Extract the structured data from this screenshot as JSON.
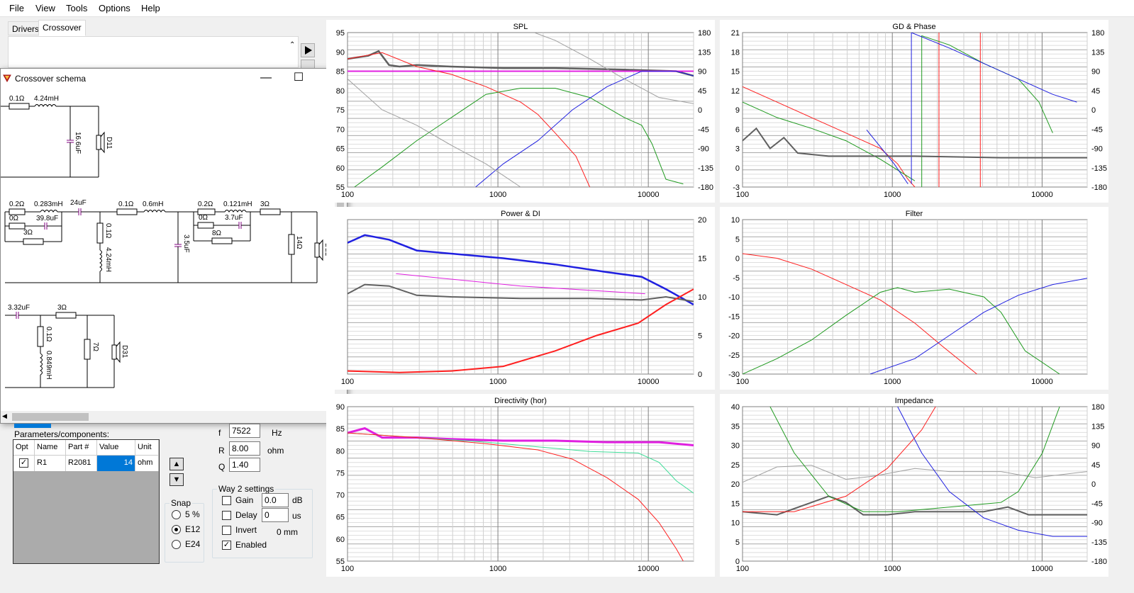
{
  "menu": [
    "File",
    "View",
    "Tools",
    "Options",
    "Help"
  ],
  "tabs": [
    "Drivers",
    "Crossover"
  ],
  "schema": {
    "title": "Crossover schema",
    "labels": {
      "r1": "0.1Ω",
      "l1": "4.24mH",
      "c1": "16.6uF",
      "d1": "D11",
      "r2": "0.2Ω",
      "l2": "0.283mH",
      "r3": "0Ω",
      "c2": "39.8uF",
      "r4": "3Ω",
      "c3": "24uF",
      "r5": "0.1Ω",
      "l3": "0.6mH",
      "r6": "0.1Ω",
      "l4": "4.24mH",
      "c4": "3.5uF",
      "r7": "0.2Ω",
      "l5": "0.121mH",
      "r8": "3Ω",
      "r9": "0Ω",
      "c5": "3.7uF",
      "r10": "8Ω",
      "r11": "14Ω",
      "d2": "D21",
      "c6": "3.32uF",
      "r12": "3Ω",
      "r13": "0.1Ω",
      "l6": "0.849mH",
      "r14": "7Ω",
      "d3": "D31"
    }
  },
  "filter_params": {
    "f_label": "f",
    "f_value": "7522",
    "f_unit": "Hz",
    "r_label": "R",
    "r_value": "8.00",
    "r_unit": "ohm",
    "q_label": "Q",
    "q_value": "1.40"
  },
  "components": {
    "title": "Parameters/components:",
    "columns": [
      "Opt",
      "Name",
      "Part #",
      "Value",
      "Unit"
    ],
    "rows": [
      {
        "opt": "✓",
        "name": "R1",
        "part": "R2081",
        "value": "14",
        "unit": "ohm"
      }
    ]
  },
  "snap": {
    "title": "Snap",
    "options": [
      "5 %",
      "E12",
      "E24"
    ],
    "selected": "E12"
  },
  "way2": {
    "title": "Way 2 settings",
    "gain_label": "Gain",
    "gain_value": "0.0",
    "gain_unit": "dB",
    "delay_label": "Delay",
    "delay_value": "0",
    "delay_unit": "us",
    "invert_label": "Invert",
    "invert_extra": "0 mm",
    "enabled_label": "Enabled",
    "enabled": true
  },
  "charts": [
    {
      "title": "SPL",
      "left_ticks": [
        "95",
        "90",
        "85",
        "80",
        "75",
        "70",
        "65",
        "60",
        "55"
      ],
      "right_ticks": [
        "180",
        "135",
        "90",
        "45",
        "0",
        "-45",
        "-90",
        "-135",
        "-180"
      ],
      "x_ticks": [
        "100",
        "1000",
        "10000"
      ]
    },
    {
      "title": "GD & Phase",
      "left_ticks": [
        "21",
        "18",
        "15",
        "12",
        "9",
        "6",
        "3",
        "0",
        "-3"
      ],
      "right_ticks": [
        "180",
        "135",
        "90",
        "45",
        "0",
        "-45",
        "-90",
        "-135",
        "-180"
      ],
      "x_ticks": [
        "100",
        "1000",
        "10000"
      ]
    },
    {
      "title": "Power & DI",
      "left_ticks": [],
      "right_ticks": [
        "20",
        "15",
        "10",
        "5",
        "0"
      ],
      "x_ticks": [
        "100",
        "1000",
        "10000"
      ]
    },
    {
      "title": "Filter",
      "left_ticks": [
        "10",
        "5",
        "0",
        "-5",
        "-10",
        "-15",
        "-20",
        "-25",
        "-30"
      ],
      "right_ticks": [],
      "x_ticks": [
        "100",
        "1000",
        "10000"
      ]
    },
    {
      "title": "Directivity (hor)",
      "left_ticks": [
        "90",
        "85",
        "80",
        "75",
        "70",
        "65",
        "60",
        "55"
      ],
      "right_ticks": [],
      "x_ticks": [
        "100",
        "1000",
        "10000"
      ]
    },
    {
      "title": "Impedance",
      "left_ticks": [
        "40",
        "35",
        "30",
        "25",
        "20",
        "15",
        "10",
        "5",
        "0"
      ],
      "right_ticks": [
        "180",
        "135",
        "90",
        "45",
        "0",
        "-45",
        "-90",
        "-135",
        "-180"
      ],
      "x_ticks": [
        "100",
        "1000",
        "10000"
      ]
    }
  ],
  "colors": {
    "red": "#ff1f1f",
    "green": "#1f9a1f",
    "blue": "#2020e0",
    "gray": "#606060",
    "lightgray": "#a0a0a0",
    "magenta": "#e020e0",
    "cyan": "#3ddc97",
    "selected_cell": "#0078d7"
  }
}
